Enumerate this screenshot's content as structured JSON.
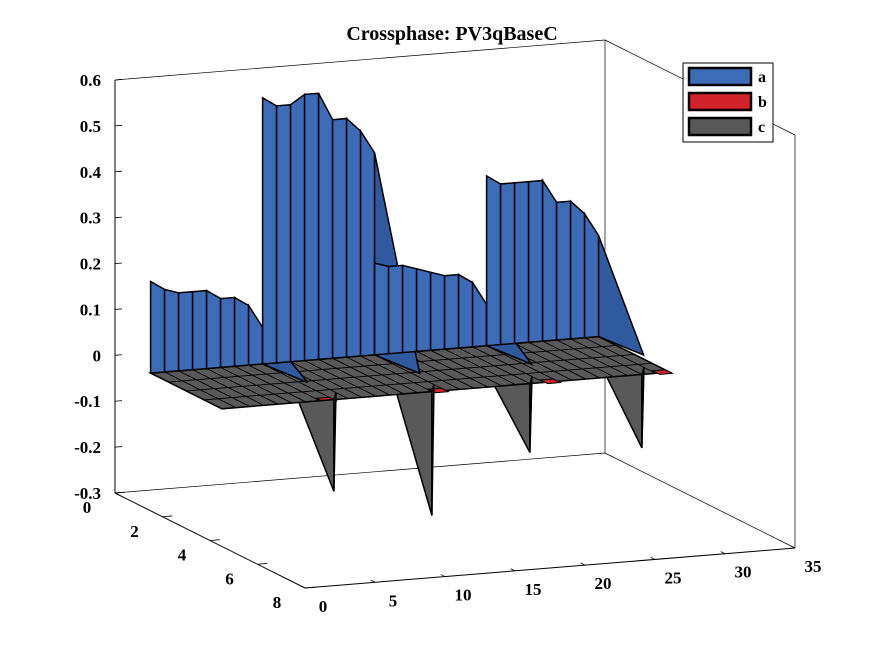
{
  "chart_data": {
    "type": "bar3",
    "title": "Crossphase: PV3qBaseC",
    "xlabel": "",
    "ylabel": "",
    "zlabel": "",
    "xlim": [
      0,
      35
    ],
    "ylim": [
      0,
      8
    ],
    "zlim": [
      -0.3,
      0.6
    ],
    "x_ticks": [
      "0",
      "5",
      "10",
      "15",
      "20",
      "25",
      "30",
      "35"
    ],
    "y_ticks": [
      "0",
      "2",
      "4",
      "6",
      "8"
    ],
    "z_ticks": [
      "-0.3",
      "-0.2",
      "-0.1",
      "0",
      "0.1",
      "0.2",
      "0.3",
      "0.4",
      "0.5",
      "0.6"
    ],
    "legend": {
      "location": "top-right",
      "entries": [
        "a",
        "b",
        "c"
      ]
    },
    "colors": {
      "a": "#3c6cb8",
      "b": "#d2222a",
      "c": "#595959"
    },
    "series": [
      {
        "name": "a",
        "y_row": 1,
        "x": [
          1,
          2,
          3,
          4,
          5,
          6,
          7,
          8,
          9,
          10,
          11,
          12,
          13,
          14,
          15,
          16,
          17,
          18,
          19,
          20,
          21,
          22,
          23,
          24,
          25,
          26,
          27,
          28,
          29,
          30,
          31,
          32
        ],
        "values": [
          0.2,
          0.18,
          0.17,
          0.17,
          0.17,
          0.15,
          0.15,
          0.13,
          0.58,
          0.56,
          0.56,
          0.58,
          0.58,
          0.52,
          0.52,
          0.49,
          0.2,
          0.19,
          0.19,
          0.18,
          0.17,
          0.16,
          0.16,
          0.14,
          0.37,
          0.35,
          0.35,
          0.35,
          0.35,
          0.3,
          0.3,
          0.27
        ]
      },
      {
        "name": "b",
        "y_row": 2,
        "x": [
          1,
          2,
          3,
          4,
          5,
          6,
          7,
          8,
          9,
          10,
          11,
          12,
          13,
          14,
          15,
          16,
          17,
          18,
          19,
          20,
          21,
          22,
          23,
          24,
          25,
          26,
          27,
          28,
          29,
          30,
          31,
          32
        ],
        "values": [
          0,
          0,
          0,
          0,
          0,
          0,
          0,
          0,
          0,
          0,
          0,
          0,
          0,
          0,
          0,
          0,
          0,
          0,
          0,
          0,
          0,
          0,
          0,
          0,
          0,
          0,
          0,
          0,
          0,
          0,
          0,
          0
        ]
      },
      {
        "name": "c",
        "y_row": 3,
        "x": [
          1,
          2,
          3,
          4,
          5,
          6,
          7,
          8,
          9,
          10,
          11,
          12,
          13,
          14,
          15,
          16,
          17,
          18,
          19,
          20,
          21,
          22,
          23,
          24,
          25,
          26,
          27,
          28,
          29,
          30,
          31,
          32
        ],
        "values": [
          0,
          0,
          0,
          0,
          0,
          0,
          0,
          0,
          0,
          0,
          0,
          0,
          0,
          0,
          0,
          0,
          0,
          0,
          0,
          0,
          0,
          0,
          0,
          0,
          0,
          0,
          0,
          0,
          0,
          0,
          0,
          0
        ]
      }
    ]
  }
}
